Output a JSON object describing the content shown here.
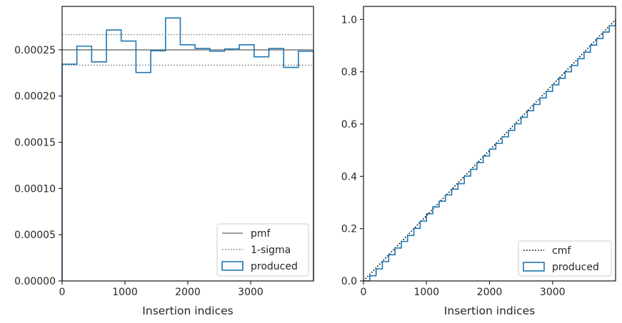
{
  "chart_data": [
    {
      "type": "histogram",
      "xlabel": "Insertion indices",
      "ylabel": "",
      "xlim": [
        0,
        4000
      ],
      "ylim": [
        0,
        0.000297
      ],
      "xticks": [
        0,
        1000,
        2000,
        3000
      ],
      "xtick_labels": [
        "0",
        "1000",
        "2000",
        "3000"
      ],
      "yticks": [
        0,
        5e-05,
        0.0001,
        0.00015,
        0.0002,
        0.00025
      ],
      "ytick_labels": [
        "0.00000",
        "0.00005",
        "0.00010",
        "0.00015",
        "0.00020",
        "0.00025"
      ],
      "grid": false,
      "legend_position": "lower right",
      "bin_edges": [
        0,
        235,
        470,
        705,
        940,
        1175,
        1410,
        1645,
        1880,
        2115,
        2350,
        2585,
        2820,
        3055,
        3290,
        3525,
        3760,
        4000
      ],
      "series": [
        {
          "name": "pmf",
          "kind": "hline",
          "y": 0.00025,
          "color": "#808080",
          "style": "solid"
        },
        {
          "name": "1-sigma",
          "kind": "hlines",
          "y": [
            0.0002335,
            0.0002665
          ],
          "color": "#808080",
          "style": "dotted"
        },
        {
          "name": "produced",
          "kind": "step",
          "color": "#1f77b4",
          "values": [
            0.0002345,
            0.000254,
            0.000237,
            0.0002715,
            0.0002595,
            0.0002255,
            0.000249,
            0.0002845,
            0.0002555,
            0.0002515,
            0.0002485,
            0.000251,
            0.0002555,
            0.0002425,
            0.0002515,
            0.000231,
            0.0002485
          ]
        }
      ]
    },
    {
      "type": "line",
      "xlabel": "Insertion indices",
      "ylabel": "",
      "xlim": [
        0,
        4000
      ],
      "ylim": [
        0,
        1.05
      ],
      "xticks": [
        0,
        1000,
        2000,
        3000
      ],
      "xtick_labels": [
        "0",
        "1000",
        "2000",
        "3000"
      ],
      "yticks": [
        0,
        0.2,
        0.4,
        0.6,
        0.8,
        1.0
      ],
      "ytick_labels": [
        "0.0",
        "0.2",
        "0.4",
        "0.6",
        "0.8",
        "1.0"
      ],
      "grid": false,
      "legend_position": "lower right",
      "series": [
        {
          "name": "cmf",
          "kind": "line",
          "color": "#000000",
          "style": "dotted",
          "x": [
            0,
            4000
          ],
          "y": [
            0,
            1.0
          ]
        },
        {
          "name": "produced",
          "kind": "step",
          "color": "#1f77b4",
          "x": [
            0,
            100,
            200,
            300,
            400,
            500,
            600,
            700,
            800,
            900,
            1000,
            1100,
            1200,
            1300,
            1400,
            1500,
            1600,
            1700,
            1800,
            1900,
            2000,
            2100,
            2200,
            2300,
            2400,
            2500,
            2600,
            2700,
            2800,
            2900,
            3000,
            3100,
            3200,
            3300,
            3400,
            3500,
            3600,
            3700,
            3800,
            3900,
            4000
          ],
          "y": [
            0,
            0.02,
            0.046,
            0.074,
            0.1,
            0.126,
            0.151,
            0.174,
            0.201,
            0.229,
            0.257,
            0.283,
            0.305,
            0.329,
            0.351,
            0.372,
            0.401,
            0.427,
            0.453,
            0.478,
            0.504,
            0.526,
            0.551,
            0.576,
            0.601,
            0.626,
            0.651,
            0.675,
            0.7,
            0.725,
            0.75,
            0.775,
            0.8,
            0.824,
            0.85,
            0.875,
            0.902,
            0.927,
            0.952,
            0.976,
            1.0
          ]
        }
      ]
    }
  ]
}
